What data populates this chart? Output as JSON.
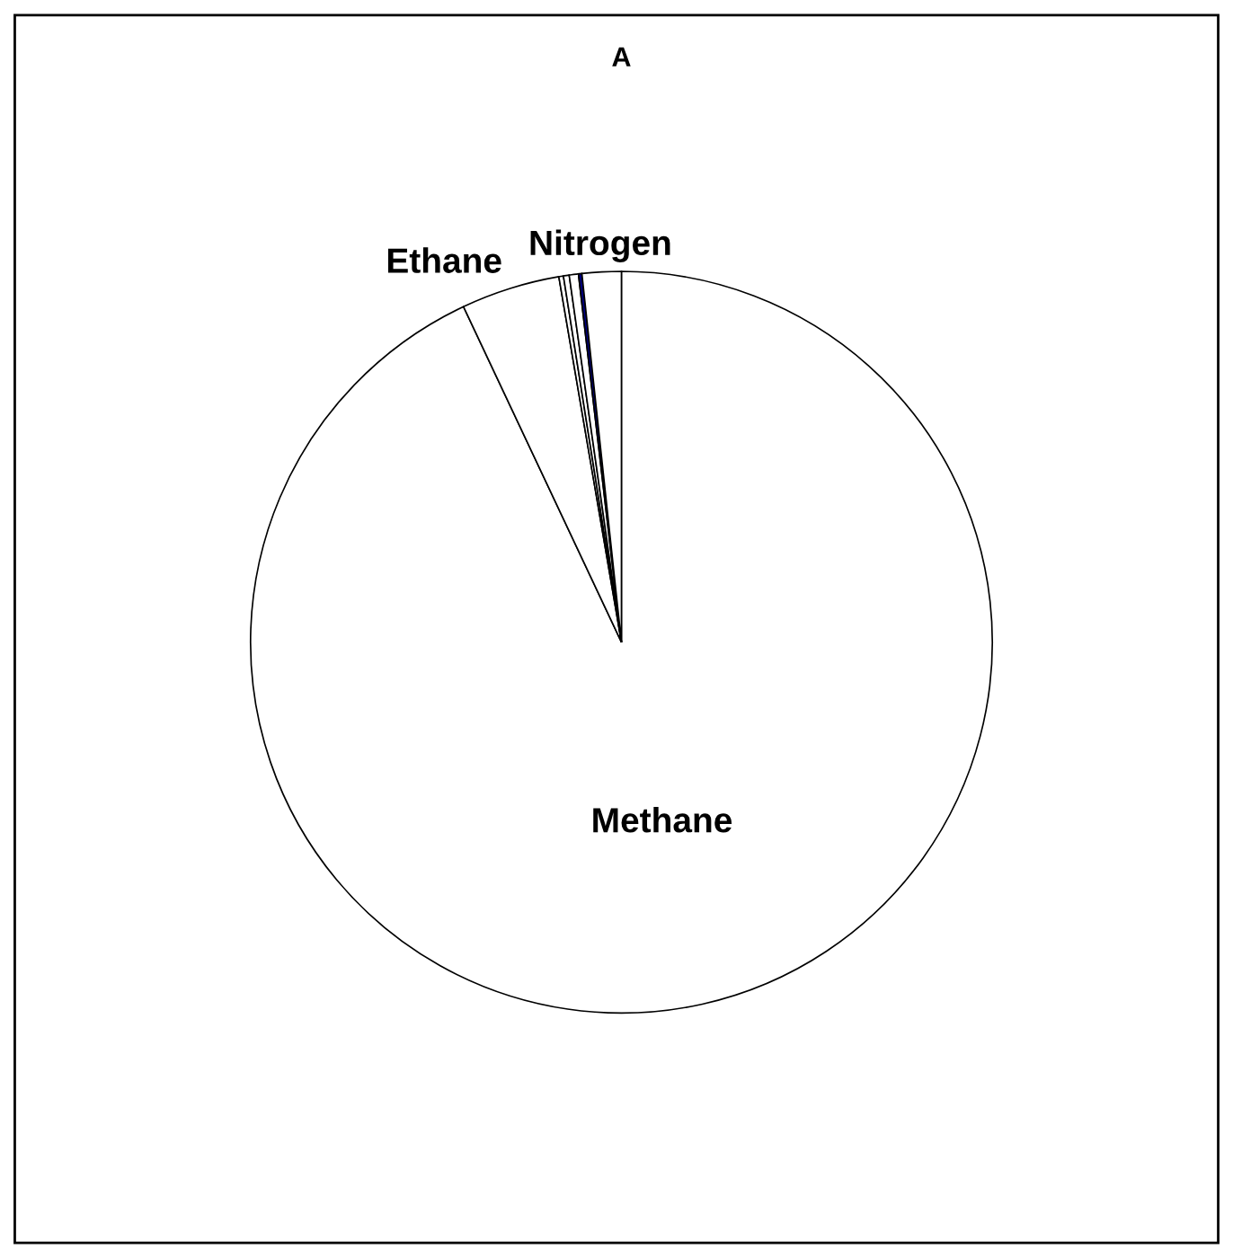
{
  "chart_data": {
    "type": "pie",
    "title": "A",
    "categories": [
      "Methane",
      "Ethane",
      null,
      null,
      null,
      null,
      "Nitrogen"
    ],
    "values": [
      93.0,
      4.3,
      0.2,
      0.25,
      0.4,
      0.15,
      1.7
    ],
    "colors": [
      "#ffffff",
      "#ffffff",
      "#ffffff",
      "#ffffff",
      "#ffffff",
      "#000080",
      "#ffffff"
    ]
  }
}
